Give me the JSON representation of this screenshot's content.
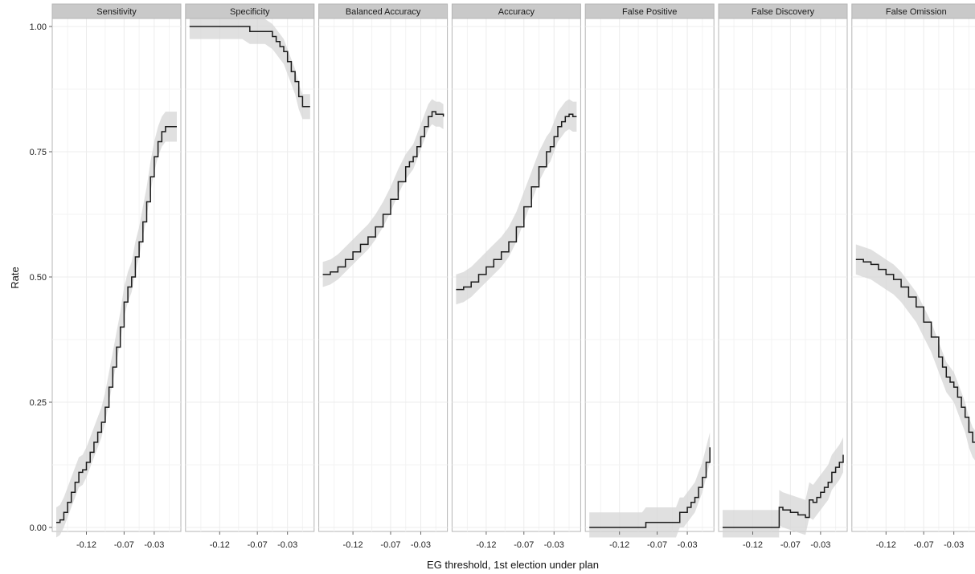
{
  "chart_data": {
    "type": "line",
    "layout": "facets",
    "xlabel": "EG threshold, 1st election under plan",
    "ylabel": "Rate",
    "xlim": [
      -0.16,
      0.0
    ],
    "ylim": [
      0.0,
      1.0
    ],
    "x_ticks": [
      -0.12,
      -0.07,
      -0.03
    ],
    "x_tick_labels": [
      "-0.12",
      "-0.07",
      "-0.03"
    ],
    "y_ticks": [
      0.0,
      0.25,
      0.5,
      0.75,
      1.0
    ],
    "y_tick_labels": [
      "0.00",
      "0.25",
      "0.50",
      "0.75",
      "1.00"
    ],
    "grid": true,
    "confidence_band": true,
    "colors": {
      "line": "#1a1a1a",
      "band": "#d6d6d6",
      "strip": "#c9c9c9",
      "grid": "#ececec",
      "border": "#b5b5b5"
    },
    "panels": [
      {
        "title": "Sensitivity",
        "x": [
          -0.16,
          -0.155,
          -0.15,
          -0.145,
          -0.14,
          -0.135,
          -0.13,
          -0.125,
          -0.12,
          -0.115,
          -0.11,
          -0.105,
          -0.1,
          -0.095,
          -0.09,
          -0.085,
          -0.08,
          -0.075,
          -0.07,
          -0.065,
          -0.06,
          -0.055,
          -0.05,
          -0.045,
          -0.04,
          -0.035,
          -0.03,
          -0.025,
          -0.02,
          -0.015,
          -0.01,
          -0.005,
          0.0
        ],
        "y": [
          0.01,
          0.015,
          0.03,
          0.05,
          0.07,
          0.09,
          0.11,
          0.115,
          0.13,
          0.15,
          0.17,
          0.19,
          0.21,
          0.24,
          0.28,
          0.32,
          0.36,
          0.4,
          0.45,
          0.48,
          0.5,
          0.54,
          0.57,
          0.61,
          0.65,
          0.7,
          0.74,
          0.77,
          0.79,
          0.8,
          0.8,
          0.8,
          0.8
        ],
        "band": 0.03
      },
      {
        "title": "Specificity",
        "x": [
          -0.16,
          -0.14,
          -0.12,
          -0.1,
          -0.09,
          -0.08,
          -0.07,
          -0.06,
          -0.05,
          -0.045,
          -0.04,
          -0.035,
          -0.03,
          -0.025,
          -0.02,
          -0.015,
          -0.01,
          -0.005,
          0.0
        ],
        "y": [
          1.0,
          1.0,
          1.0,
          1.0,
          1.0,
          0.99,
          0.99,
          0.99,
          0.98,
          0.97,
          0.96,
          0.95,
          0.93,
          0.91,
          0.89,
          0.86,
          0.84,
          0.84,
          0.84
        ],
        "band": 0.025
      },
      {
        "title": "Balanced Accuracy",
        "x": [
          -0.16,
          -0.15,
          -0.14,
          -0.13,
          -0.12,
          -0.11,
          -0.1,
          -0.09,
          -0.08,
          -0.07,
          -0.06,
          -0.05,
          -0.045,
          -0.04,
          -0.035,
          -0.03,
          -0.025,
          -0.02,
          -0.015,
          -0.01,
          -0.005,
          0.0
        ],
        "y": [
          0.505,
          0.51,
          0.52,
          0.535,
          0.55,
          0.565,
          0.58,
          0.6,
          0.625,
          0.655,
          0.69,
          0.72,
          0.73,
          0.74,
          0.76,
          0.78,
          0.8,
          0.82,
          0.83,
          0.825,
          0.825,
          0.82
        ],
        "band": 0.025
      },
      {
        "title": "Accuracy",
        "x": [
          -0.16,
          -0.15,
          -0.14,
          -0.13,
          -0.12,
          -0.11,
          -0.1,
          -0.09,
          -0.08,
          -0.07,
          -0.06,
          -0.05,
          -0.04,
          -0.035,
          -0.03,
          -0.025,
          -0.02,
          -0.015,
          -0.01,
          -0.005,
          0.0
        ],
        "y": [
          0.475,
          0.48,
          0.49,
          0.505,
          0.52,
          0.535,
          0.55,
          0.57,
          0.6,
          0.64,
          0.68,
          0.72,
          0.75,
          0.76,
          0.78,
          0.8,
          0.81,
          0.82,
          0.825,
          0.82,
          0.82
        ],
        "band": 0.03
      },
      {
        "title": "False Positive",
        "x": [
          -0.16,
          -0.14,
          -0.12,
          -0.1,
          -0.09,
          -0.085,
          -0.08,
          -0.07,
          -0.06,
          -0.05,
          -0.045,
          -0.04,
          -0.035,
          -0.03,
          -0.025,
          -0.02,
          -0.015,
          -0.01,
          -0.005,
          0.0
        ],
        "y": [
          0.0,
          0.0,
          0.0,
          0.0,
          0.0,
          0.01,
          0.01,
          0.01,
          0.01,
          0.01,
          0.01,
          0.03,
          0.03,
          0.04,
          0.05,
          0.06,
          0.08,
          0.1,
          0.13,
          0.16
        ],
        "band": 0.03
      },
      {
        "title": "False Discovery",
        "x": [
          -0.16,
          -0.14,
          -0.12,
          -0.1,
          -0.085,
          -0.0849,
          -0.08,
          -0.07,
          -0.06,
          -0.05,
          -0.0449,
          -0.04,
          -0.035,
          -0.03,
          -0.025,
          -0.02,
          -0.015,
          -0.01,
          -0.005,
          0.0
        ],
        "y": [
          0.0,
          0.0,
          0.0,
          0.0,
          0.0,
          0.04,
          0.035,
          0.03,
          0.025,
          0.02,
          0.055,
          0.05,
          0.06,
          0.07,
          0.08,
          0.09,
          0.11,
          0.12,
          0.13,
          0.145
        ],
        "band": 0.035
      },
      {
        "title": "False Omission",
        "x": [
          -0.16,
          -0.15,
          -0.14,
          -0.13,
          -0.12,
          -0.11,
          -0.1,
          -0.09,
          -0.08,
          -0.07,
          -0.06,
          -0.05,
          -0.045,
          -0.04,
          -0.035,
          -0.03,
          -0.025,
          -0.02,
          -0.015,
          -0.01,
          -0.005,
          0.0
        ],
        "y": [
          0.535,
          0.53,
          0.525,
          0.515,
          0.505,
          0.495,
          0.48,
          0.46,
          0.44,
          0.41,
          0.38,
          0.34,
          0.32,
          0.3,
          0.29,
          0.28,
          0.26,
          0.24,
          0.22,
          0.19,
          0.17,
          0.16
        ],
        "band": 0.03
      }
    ]
  }
}
